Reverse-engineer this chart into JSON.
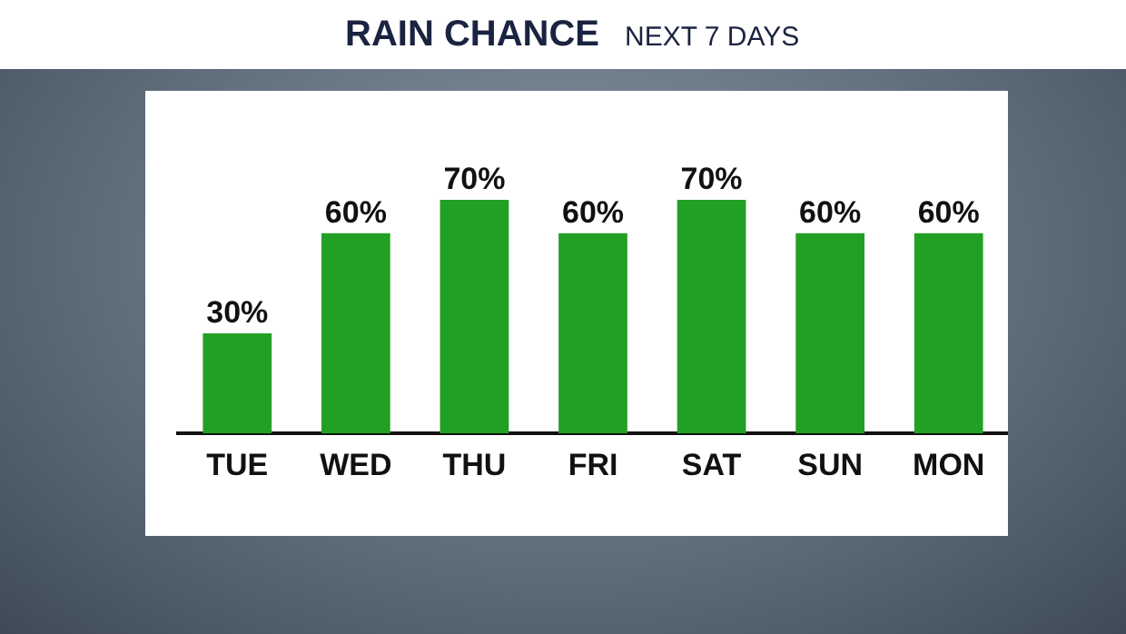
{
  "chart_data": {
    "type": "bar",
    "title": "RAIN CHANCE",
    "subtitle": "NEXT 7 DAYS",
    "categories": [
      "TUE",
      "WED",
      "THU",
      "FRI",
      "SAT",
      "SUN",
      "MON"
    ],
    "values": [
      30,
      60,
      70,
      60,
      70,
      60,
      60
    ],
    "color": "#22a024",
    "data_labels": true,
    "value_labels": [
      "30%",
      "60%",
      "70%",
      "60%",
      "70%",
      "60%",
      "60%"
    ],
    "grid": false,
    "legend": false
  }
}
